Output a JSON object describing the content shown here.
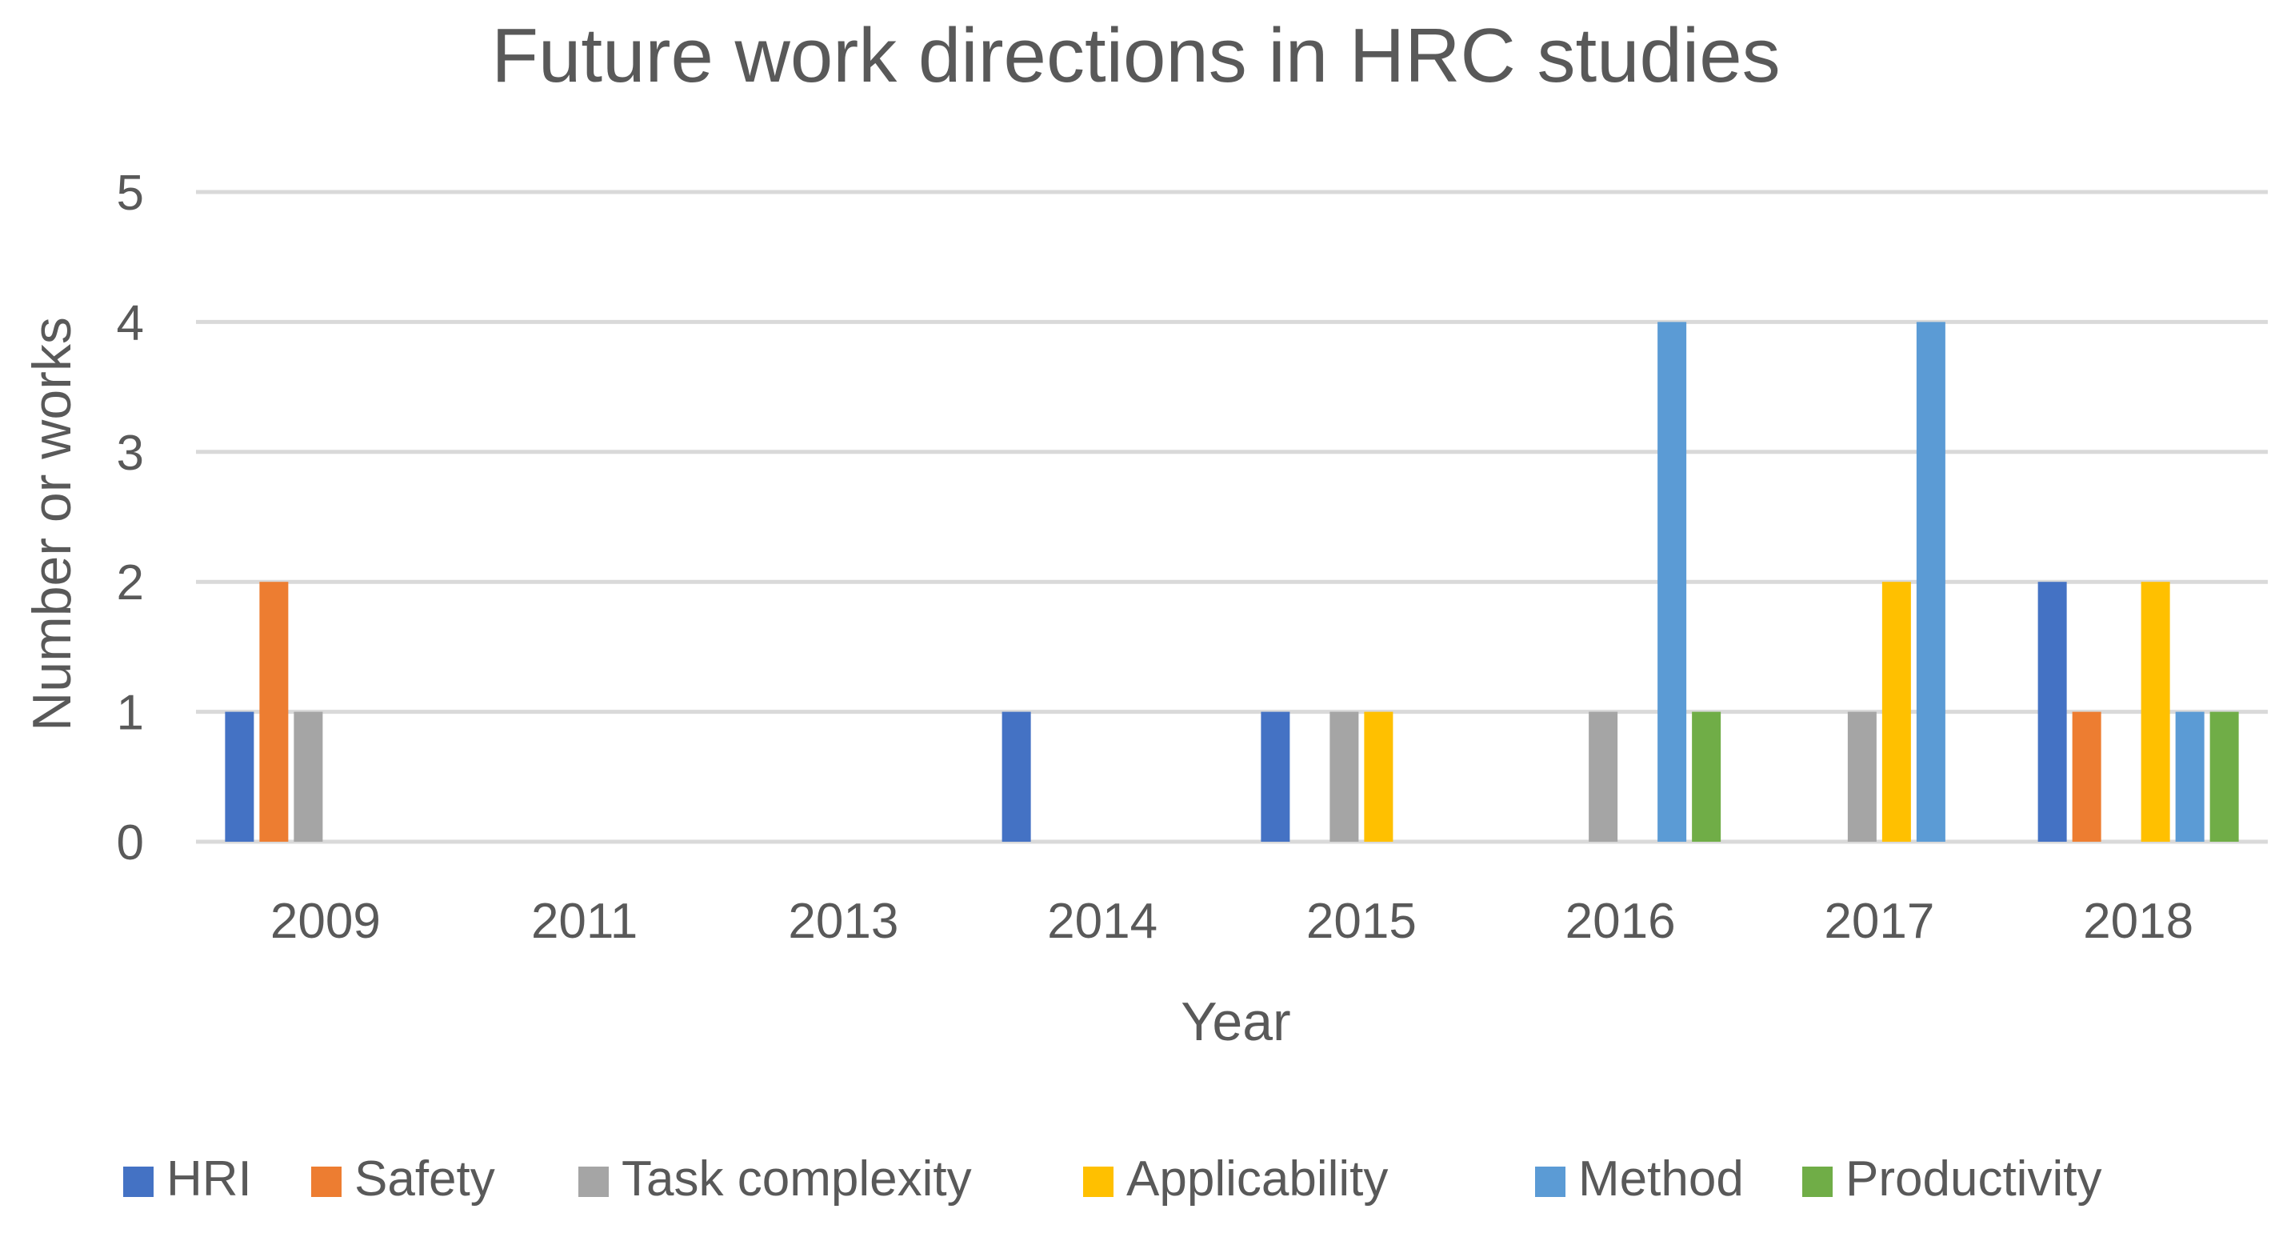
{
  "chart_data": {
    "type": "bar",
    "title": "Future work directions in HRC studies",
    "xlabel": "Year",
    "ylabel": "Number or works",
    "categories": [
      "2009",
      "2011",
      "2013",
      "2014",
      "2015",
      "2016",
      "2017",
      "2018"
    ],
    "ylim": [
      0,
      5
    ],
    "yticks": [
      0,
      1,
      2,
      3,
      4,
      5
    ],
    "grid": true,
    "legend_position": "bottom",
    "series": [
      {
        "name": "HRI",
        "color": "#4472C4",
        "values": [
          1,
          0,
          0,
          1,
          1,
          0,
          0,
          2
        ]
      },
      {
        "name": "Safety",
        "color": "#ED7D31",
        "values": [
          2,
          0,
          0,
          0,
          0,
          0,
          0,
          1
        ]
      },
      {
        "name": "Task complexity",
        "color": "#A5A5A5",
        "values": [
          1,
          0,
          0,
          0,
          1,
          1,
          1,
          0
        ]
      },
      {
        "name": "Applicability",
        "color": "#FFC000",
        "values": [
          0,
          0,
          0,
          0,
          1,
          0,
          2,
          2
        ]
      },
      {
        "name": "Method",
        "color": "#5B9BD5",
        "values": [
          0,
          0,
          0,
          0,
          0,
          4,
          4,
          1
        ]
      },
      {
        "name": "Productivity",
        "color": "#70AD47",
        "values": [
          0,
          0,
          0,
          0,
          0,
          1,
          0,
          1
        ]
      }
    ]
  }
}
